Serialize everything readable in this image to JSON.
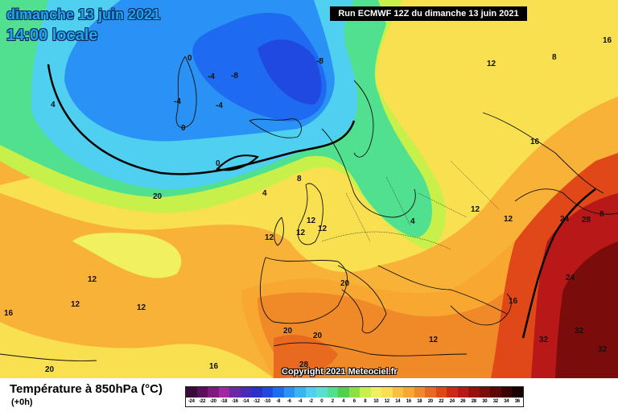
{
  "header": {
    "date_label": "dimanche 13 juin 2021",
    "time_label": "14:00 locale",
    "run_label": "Run ECMWF 12Z du dimanche 13 juin 2021"
  },
  "copyright": "Copyright 2021 Meteociel.fr",
  "legend": {
    "title": "Température à 850hPa (°C)",
    "subtitle": "(+0h)",
    "ticks": [
      "-24",
      "-22",
      "-20",
      "-18",
      "-16",
      "-14",
      "-12",
      "-10",
      "-8",
      "-6",
      "-4",
      "-2",
      "0",
      "2",
      "4",
      "6",
      "8",
      "10",
      "12",
      "14",
      "16",
      "18",
      "20",
      "22",
      "24",
      "26",
      "28",
      "30",
      "32",
      "34",
      "36"
    ],
    "colors": [
      "#3a0a3a",
      "#5a0f5a",
      "#7d1a7d",
      "#9e2aa0",
      "#6a2aa8",
      "#4a2ab8",
      "#2a30c8",
      "#1f49e0",
      "#1e6af0",
      "#2a92f5",
      "#35b5f5",
      "#50d0f0",
      "#5ae0d0",
      "#50e090",
      "#4fd050",
      "#8ce040",
      "#c8f04a",
      "#f0f060",
      "#f8e050",
      "#f8c040",
      "#f8a830",
      "#f08a28",
      "#e86a20",
      "#e04818",
      "#d02818",
      "#b81818",
      "#961010",
      "#7a0c0c",
      "#5a0808",
      "#3a0404",
      "#1a0000"
    ]
  },
  "labels": [
    {
      "text": "0"
    },
    {
      "text": "-4"
    },
    {
      "text": "-8"
    },
    {
      "text": "-8"
    },
    {
      "text": "-4"
    },
    {
      "text": "-4"
    },
    {
      "text": "0"
    },
    {
      "text": "0"
    },
    {
      "text": "4"
    },
    {
      "text": "4"
    },
    {
      "text": "8"
    },
    {
      "text": "12"
    },
    {
      "text": "12"
    },
    {
      "text": "12"
    },
    {
      "text": "12"
    },
    {
      "text": "12"
    },
    {
      "text": "12"
    },
    {
      "text": "12"
    },
    {
      "text": "12"
    },
    {
      "text": "12"
    },
    {
      "text": "12"
    },
    {
      "text": "16"
    },
    {
      "text": "16"
    },
    {
      "text": "16"
    },
    {
      "text": "16"
    },
    {
      "text": "20"
    },
    {
      "text": "20"
    },
    {
      "text": "20"
    },
    {
      "text": "20"
    },
    {
      "text": "20"
    },
    {
      "text": "24"
    },
    {
      "text": "24"
    },
    {
      "text": "28"
    },
    {
      "text": "28"
    },
    {
      "text": "32"
    },
    {
      "text": "32"
    },
    {
      "text": "32"
    },
    {
      "text": "8"
    },
    {
      "text": "8"
    },
    {
      "text": "16"
    },
    {
      "text": "4"
    },
    {
      "text": "12"
    }
  ]
}
